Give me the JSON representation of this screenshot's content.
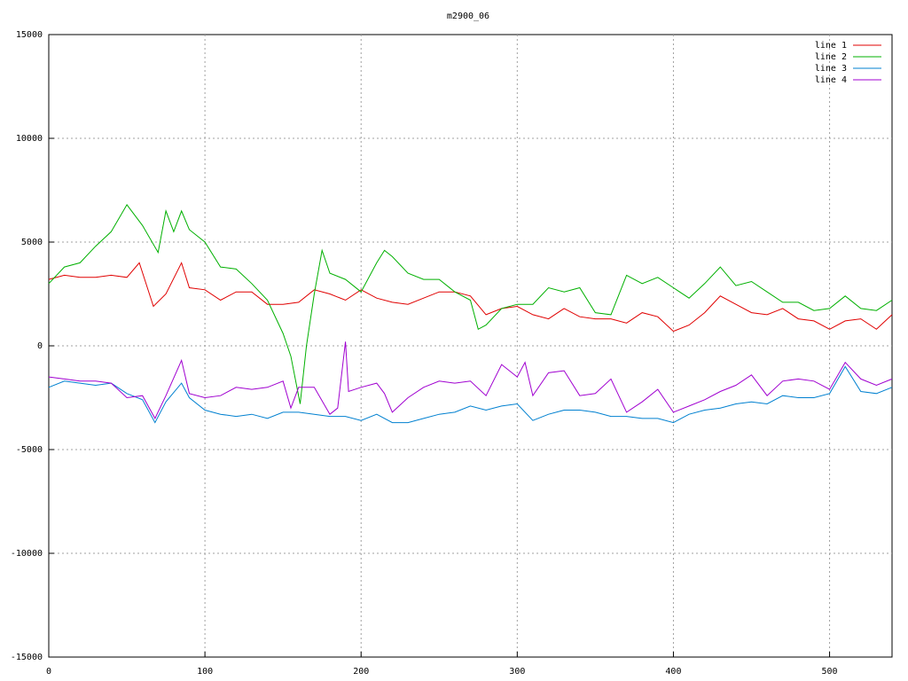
{
  "chart_data": {
    "type": "line",
    "title": "m2900_06",
    "xlim": [
      0,
      540
    ],
    "xticks": [
      0,
      100,
      200,
      300,
      400,
      500
    ],
    "ylim": [
      -15000,
      15000
    ],
    "yticks": [
      -15000,
      -10000,
      -5000,
      0,
      5000,
      10000,
      15000
    ],
    "grid": true,
    "legend": "top-right",
    "series": [
      {
        "name": "line 1",
        "color": "#e00000",
        "x": [
          0,
          10,
          20,
          30,
          40,
          50,
          58,
          67,
          75,
          85,
          90,
          100,
          110,
          120,
          130,
          140,
          150,
          160,
          170,
          180,
          190,
          200,
          210,
          220,
          230,
          240,
          250,
          260,
          270,
          280,
          290,
          300,
          310,
          320,
          330,
          340,
          350,
          360,
          370,
          380,
          390,
          400,
          410,
          420,
          430,
          440,
          450,
          460,
          470,
          480,
          490,
          500,
          510,
          520,
          530,
          540
        ],
        "values": [
          3200,
          3400,
          3300,
          3300,
          3400,
          3300,
          4000,
          1900,
          2500,
          4000,
          2800,
          2700,
          2200,
          2600,
          2600,
          2000,
          2000,
          2100,
          2700,
          2500,
          2200,
          2700,
          2300,
          2100,
          2000,
          2300,
          2600,
          2600,
          2400,
          1500,
          1800,
          1900,
          1500,
          1300,
          1800,
          1400,
          1300,
          1300,
          1100,
          1600,
          1400,
          700,
          1000,
          1600,
          2400,
          2000,
          1600,
          1500,
          1800,
          1300,
          1200,
          800,
          1200,
          1300,
          800,
          1500
        ]
      },
      {
        "name": "line 2",
        "color": "#00b000",
        "x": [
          0,
          10,
          20,
          30,
          40,
          50,
          60,
          70,
          75,
          80,
          85,
          90,
          100,
          110,
          120,
          130,
          140,
          150,
          155,
          161,
          165,
          170,
          175,
          180,
          190,
          200,
          210,
          215,
          220,
          230,
          240,
          250,
          260,
          270,
          275,
          280,
          290,
          300,
          310,
          320,
          330,
          340,
          350,
          360,
          370,
          380,
          390,
          400,
          410,
          420,
          430,
          440,
          450,
          460,
          470,
          480,
          490,
          500,
          510,
          520,
          530,
          540
        ],
        "values": [
          3000,
          3800,
          4000,
          4800,
          5500,
          6800,
          5800,
          4500,
          6500,
          5500,
          6500,
          5600,
          5000,
          3800,
          3700,
          3000,
          2200,
          600,
          -500,
          -2800,
          0,
          2500,
          4600,
          3500,
          3200,
          2600,
          4000,
          4600,
          4300,
          3500,
          3200,
          3200,
          2600,
          2200,
          800,
          1000,
          1800,
          2000,
          2000,
          2800,
          2600,
          2800,
          1600,
          1500,
          3400,
          3000,
          3300,
          2800,
          2300,
          3000,
          3800,
          2900,
          3100,
          2600,
          2100,
          2100,
          1700,
          1800,
          2400,
          1800,
          1700,
          2200
        ]
      },
      {
        "name": "line 3",
        "color": "#0080d0",
        "x": [
          0,
          10,
          20,
          30,
          40,
          50,
          60,
          68,
          75,
          85,
          90,
          100,
          110,
          120,
          130,
          140,
          150,
          160,
          170,
          180,
          190,
          200,
          210,
          220,
          230,
          240,
          250,
          260,
          270,
          280,
          290,
          300,
          310,
          320,
          330,
          340,
          350,
          360,
          370,
          380,
          390,
          400,
          410,
          420,
          430,
          440,
          450,
          460,
          470,
          480,
          490,
          500,
          510,
          520,
          530,
          540
        ],
        "values": [
          -2000,
          -1700,
          -1800,
          -1900,
          -1800,
          -2300,
          -2600,
          -3700,
          -2700,
          -1800,
          -2500,
          -3100,
          -3300,
          -3400,
          -3300,
          -3500,
          -3200,
          -3200,
          -3300,
          -3400,
          -3400,
          -3600,
          -3300,
          -3700,
          -3700,
          -3500,
          -3300,
          -3200,
          -2900,
          -3100,
          -2900,
          -2800,
          -3600,
          -3300,
          -3100,
          -3100,
          -3200,
          -3400,
          -3400,
          -3500,
          -3500,
          -3700,
          -3300,
          -3100,
          -3000,
          -2800,
          -2700,
          -2800,
          -2400,
          -2500,
          -2500,
          -2300,
          -1000,
          -2200,
          -2300,
          -2000
        ]
      },
      {
        "name": "line 4",
        "color": "#a000d0",
        "x": [
          0,
          10,
          20,
          30,
          40,
          50,
          60,
          68,
          75,
          85,
          90,
          100,
          110,
          120,
          130,
          140,
          150,
          155,
          160,
          170,
          180,
          185,
          190,
          192,
          200,
          210,
          215,
          220,
          230,
          240,
          250,
          260,
          270,
          280,
          290,
          300,
          305,
          310,
          320,
          330,
          340,
          350,
          360,
          370,
          380,
          390,
          400,
          410,
          420,
          430,
          440,
          450,
          460,
          470,
          480,
          490,
          500,
          510,
          520,
          530,
          540
        ],
        "values": [
          -1500,
          -1600,
          -1700,
          -1700,
          -1800,
          -2500,
          -2400,
          -3500,
          -2400,
          -700,
          -2300,
          -2500,
          -2400,
          -2000,
          -2100,
          -2000,
          -1700,
          -3000,
          -2000,
          -2000,
          -3300,
          -3000,
          200,
          -2200,
          -2000,
          -1800,
          -2300,
          -3200,
          -2500,
          -2000,
          -1700,
          -1800,
          -1700,
          -2400,
          -900,
          -1500,
          -800,
          -2400,
          -1300,
          -1200,
          -2400,
          -2300,
          -1600,
          -3200,
          -2700,
          -2100,
          -3200,
          -2900,
          -2600,
          -2200,
          -1900,
          -1400,
          -2400,
          -1700,
          -1600,
          -1700,
          -2100,
          -800,
          -1600,
          -1900,
          -1600
        ]
      }
    ]
  }
}
